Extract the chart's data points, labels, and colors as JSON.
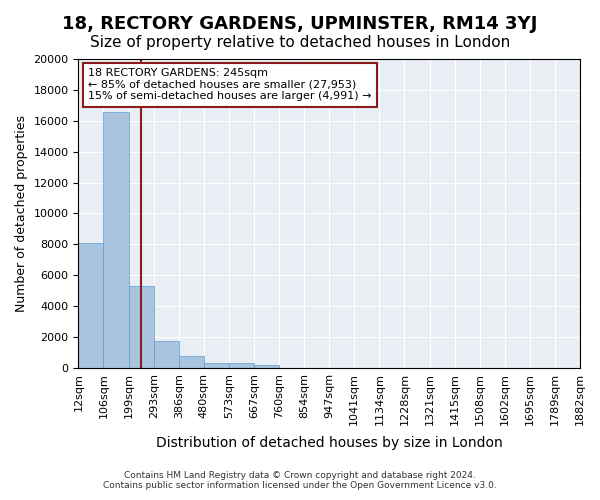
{
  "title": "18, RECTORY GARDENS, UPMINSTER, RM14 3YJ",
  "subtitle": "Size of property relative to detached houses in London",
  "xlabel": "Distribution of detached houses by size in London",
  "ylabel": "Number of detached properties",
  "bar_values": [
    8100,
    16600,
    5300,
    1750,
    800,
    300,
    300,
    200,
    0,
    0,
    0,
    0,
    0,
    0,
    0,
    0,
    0,
    0,
    0,
    0
  ],
  "bar_labels": [
    "12sqm",
    "106sqm",
    "199sqm",
    "293sqm",
    "386sqm",
    "480sqm",
    "573sqm",
    "667sqm",
    "760sqm",
    "854sqm",
    "947sqm",
    "1041sqm",
    "1134sqm",
    "1228sqm",
    "1321sqm",
    "1415sqm",
    "1508sqm",
    "1602sqm",
    "1695sqm",
    "1789sqm",
    "1882sqm"
  ],
  "bar_color": "#aac4e0",
  "bar_edge_color": "#5a9fd4",
  "vline_color": "#8b1a1a",
  "annotation_title": "18 RECTORY GARDENS: 245sqm",
  "annotation_line1": "← 85% of detached houses are smaller (27,953)",
  "annotation_line2": "15% of semi-detached houses are larger (4,991) →",
  "annotation_box_color": "#ffffff",
  "annotation_box_edge_color": "#8b1a1a",
  "ylim": [
    0,
    20000
  ],
  "yticks": [
    0,
    2000,
    4000,
    6000,
    8000,
    10000,
    12000,
    14000,
    16000,
    18000,
    20000
  ],
  "background_color": "#e8eef4",
  "footer_line1": "Contains HM Land Registry data © Crown copyright and database right 2024.",
  "footer_line2": "Contains public sector information licensed under the Open Government Licence v3.0.",
  "title_fontsize": 13,
  "subtitle_fontsize": 11,
  "xlabel_fontsize": 10,
  "ylabel_fontsize": 9,
  "tick_fontsize": 8
}
